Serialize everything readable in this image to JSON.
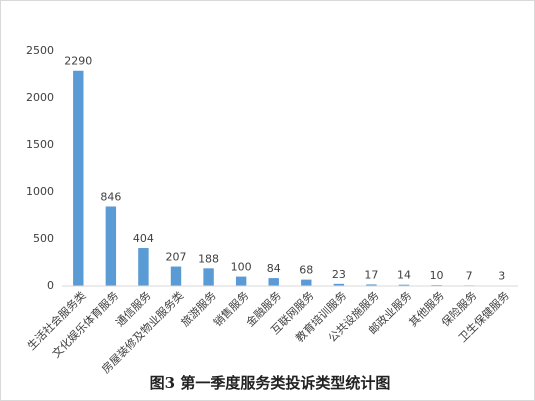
{
  "chart_data": {
    "type": "bar",
    "title": "图3 第一季度服务类投诉类型统计图",
    "categories": [
      "生活社会服务类",
      "文化娱乐体育服务",
      "通信服务",
      "房屋装修及物业服务类",
      "旅游服务",
      "销售服务",
      "金融服务",
      "互联网服务",
      "教育培训服务",
      "公共设施服务",
      "邮政业服务",
      "其他服务",
      "保险服务",
      "卫生保健服务"
    ],
    "values": [
      2290,
      846,
      404,
      207,
      188,
      100,
      84,
      68,
      23,
      17,
      14,
      10,
      7,
      3
    ],
    "color": "#5b9bd5",
    "ylim": [
      0,
      2500
    ],
    "yticks": [
      0,
      500,
      1000,
      1500,
      2000,
      2500
    ],
    "grid": false
  }
}
